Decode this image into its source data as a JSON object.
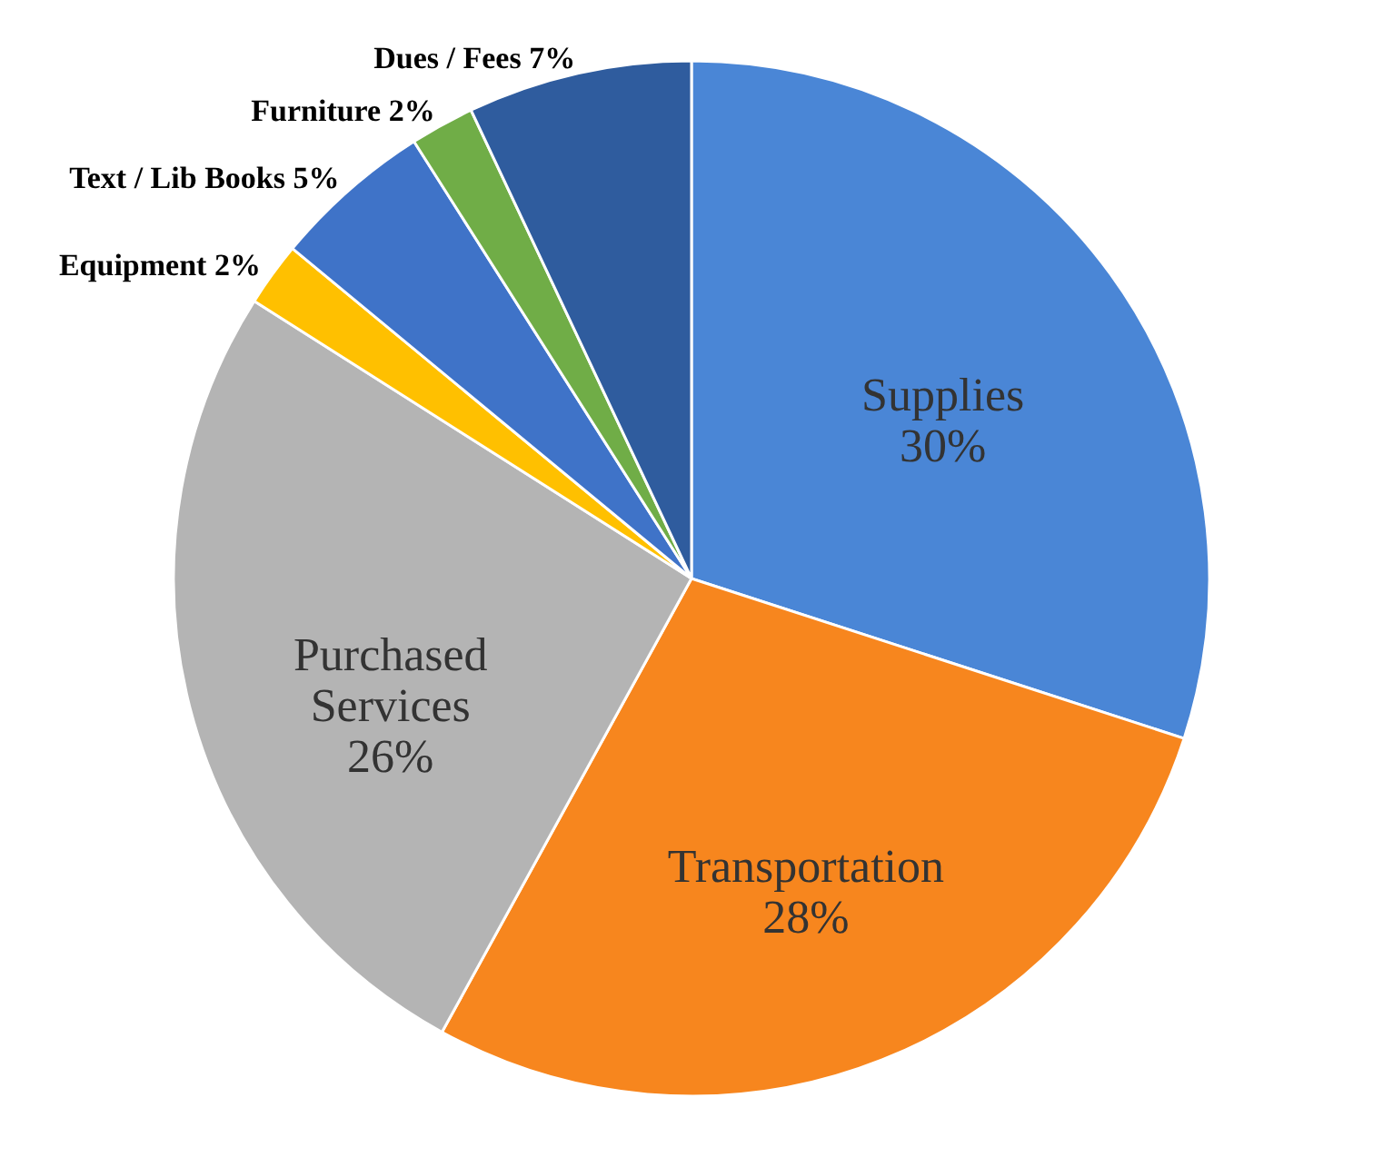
{
  "chart_data": {
    "type": "pie",
    "categories": [
      "Supplies",
      "Transportation",
      "Purchased Services",
      "Equipment",
      "Text / Lib Books",
      "Furniture",
      "Dues / Fees"
    ],
    "values": [
      30,
      28,
      26,
      2,
      5,
      2,
      7
    ],
    "colors": [
      "#4a86d6",
      "#f7861e",
      "#b4b4b4",
      "#ffc000",
      "#3f73c8",
      "#70ad47",
      "#2f5c9e"
    ],
    "value_labels": [
      "30%",
      "28%",
      "26%",
      "2%",
      "5%",
      "2%",
      "7%"
    ]
  }
}
